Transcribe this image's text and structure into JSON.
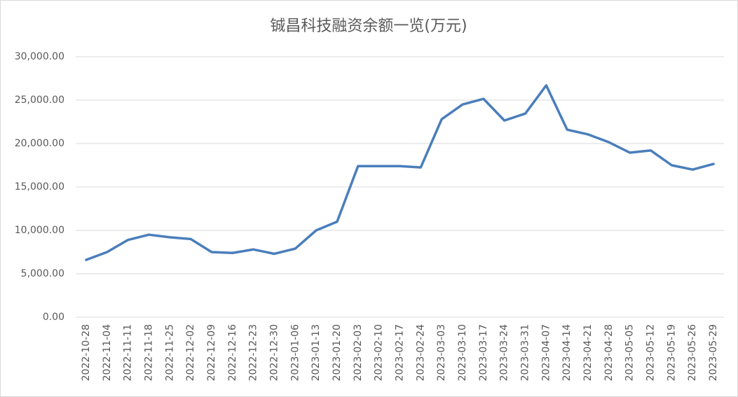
{
  "chart_data": {
    "type": "line",
    "title": "铖昌科技融资余额一览(万元)",
    "categories": [
      "2022-10-28",
      "2022-11-04",
      "2022-11-11",
      "2022-11-18",
      "2022-11-25",
      "2022-12-02",
      "2022-12-09",
      "2022-12-16",
      "2022-12-23",
      "2022-12-30",
      "2023-01-06",
      "2023-01-13",
      "2023-01-20",
      "2023-02-03",
      "2023-02-10",
      "2023-02-17",
      "2023-02-24",
      "2023-03-03",
      "2023-03-10",
      "2023-03-17",
      "2023-03-24",
      "2023-03-31",
      "2023-04-07",
      "2023-04-14",
      "2023-04-21",
      "2023-04-28",
      "2023-05-05",
      "2023-05-12",
      "2023-05-19",
      "2023-05-26",
      "2023-05-29"
    ],
    "values": [
      6600,
      7500,
      8900,
      9500,
      9200,
      9000,
      7500,
      7400,
      7800,
      7300,
      7900,
      10000,
      11000,
      17400,
      17400,
      17400,
      17250,
      22800,
      24500,
      25150,
      22650,
      23450,
      26700,
      21600,
      21050,
      20150,
      18950,
      19200,
      17500,
      17000,
      17650
    ],
    "color": "#4a7ebb",
    "ylim": [
      0,
      30000
    ],
    "yticks": [
      {
        "value": 0,
        "label": "0.00"
      },
      {
        "value": 5000,
        "label": "5,000.00"
      },
      {
        "value": 10000,
        "label": "10,000.00"
      },
      {
        "value": 15000,
        "label": "15,000.00"
      },
      {
        "value": 20000,
        "label": "20,000.00"
      },
      {
        "value": 25000,
        "label": "25,000.00"
      },
      {
        "value": 30000,
        "label": "30,000.00"
      }
    ],
    "grid": true
  }
}
